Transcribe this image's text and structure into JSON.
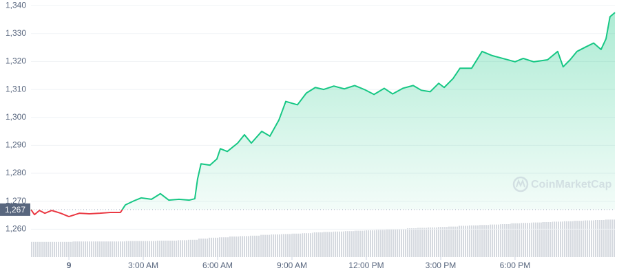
{
  "chart_data": [
    {
      "type": "line",
      "x": [
        -1.53,
        -1.39,
        -1.19,
        -0.97,
        -0.69,
        -0.33,
        0,
        0.42,
        0.83,
        1.25,
        1.67,
        2.08,
        2.28,
        2.64,
        2.92,
        3.33,
        3.69,
        4.03,
        4.44,
        4.86,
        5.08,
        5.19,
        5.33,
        5.69,
        5.97,
        6.11,
        6.39,
        6.81,
        7.08,
        7.36,
        7.78,
        8.11,
        8.47,
        8.75,
        9.22,
        9.58,
        9.94,
        10.28,
        10.69,
        11.11,
        11.53,
        11.94,
        12.31,
        12.72,
        13.06,
        13.47,
        13.89,
        14.22,
        14.58,
        14.92,
        15.14,
        15.5,
        15.78,
        16.25,
        16.67,
        17.08,
        17.5,
        18.0,
        18.33,
        18.75,
        19.31,
        19.72,
        19.94,
        20.22,
        20.5,
        20.83,
        21.17,
        21.47,
        21.67,
        21.83,
        22.03
      ],
      "values": [
        1267,
        1265.2,
        1266.7,
        1265.7,
        1266.7,
        1265.7,
        1264.5,
        1265.7,
        1265.5,
        1265.7,
        1266.0,
        1266.0,
        1268.7,
        1270.2,
        1271.2,
        1270.7,
        1272.7,
        1270.4,
        1270.7,
        1270.4,
        1270.9,
        1277.9,
        1283.4,
        1282.9,
        1285.1,
        1288.8,
        1287.8,
        1290.8,
        1293.8,
        1290.8,
        1295.0,
        1293.3,
        1299.0,
        1305.7,
        1304.5,
        1308.7,
        1310.7,
        1310.0,
        1311.2,
        1310.2,
        1311.4,
        1309.9,
        1308.2,
        1310.4,
        1308.4,
        1310.4,
        1311.4,
        1309.7,
        1309.2,
        1312.2,
        1310.7,
        1313.9,
        1317.6,
        1317.6,
        1323.6,
        1322.1,
        1321.1,
        1319.9,
        1321.1,
        1319.9,
        1320.6,
        1323.6,
        1318.1,
        1320.6,
        1323.6,
        1325.1,
        1326.6,
        1324.3,
        1328.1,
        1336.0,
        1337.5
      ],
      "up_color": "#16c784",
      "down_color": "#ea3943",
      "reference": {
        "value": 1267,
        "label": "1,267"
      },
      "xlim": [
        -1.53,
        22.03
      ],
      "xticks": [
        {
          "value": 0,
          "label": "9"
        },
        {
          "value": 3,
          "label": "3:00 AM"
        },
        {
          "value": 6,
          "label": "6:00 AM"
        },
        {
          "value": 9,
          "label": "9:00 AM"
        },
        {
          "value": 12,
          "label": "12:00 PM"
        },
        {
          "value": 15,
          "label": "3:00 PM"
        },
        {
          "value": 18,
          "label": "6:00 PM"
        }
      ],
      "ylim": [
        1250,
        1342
      ],
      "yticks": [
        {
          "value": 1260,
          "label": "1,260"
        },
        {
          "value": 1270,
          "label": "1,270"
        },
        {
          "value": 1280,
          "label": "1,280"
        },
        {
          "value": 1290,
          "label": "1,290"
        },
        {
          "value": 1300,
          "label": "1,300"
        },
        {
          "value": 1310,
          "label": "1,310"
        },
        {
          "value": 1320,
          "label": "1,320"
        },
        {
          "value": 1330,
          "label": "1,330"
        },
        {
          "value": 1340,
          "label": "1,340"
        }
      ],
      "grid": true,
      "watermark": "CoinMarketCap"
    },
    {
      "type": "bar",
      "values": [
        37,
        37,
        37,
        37,
        38,
        38,
        38,
        38,
        38,
        39,
        39,
        39,
        40,
        40,
        41,
        42,
        45,
        47,
        48,
        50,
        51,
        52,
        54,
        55,
        56,
        57,
        58,
        60,
        61,
        62,
        63,
        64,
        65,
        66,
        67,
        68,
        70,
        71,
        72,
        73,
        74,
        76,
        77,
        78,
        79,
        80,
        82,
        83,
        84,
        85,
        86,
        87,
        88,
        89,
        90,
        91
      ],
      "color": "#d5d9df",
      "ylim": [
        0,
        100
      ]
    }
  ]
}
